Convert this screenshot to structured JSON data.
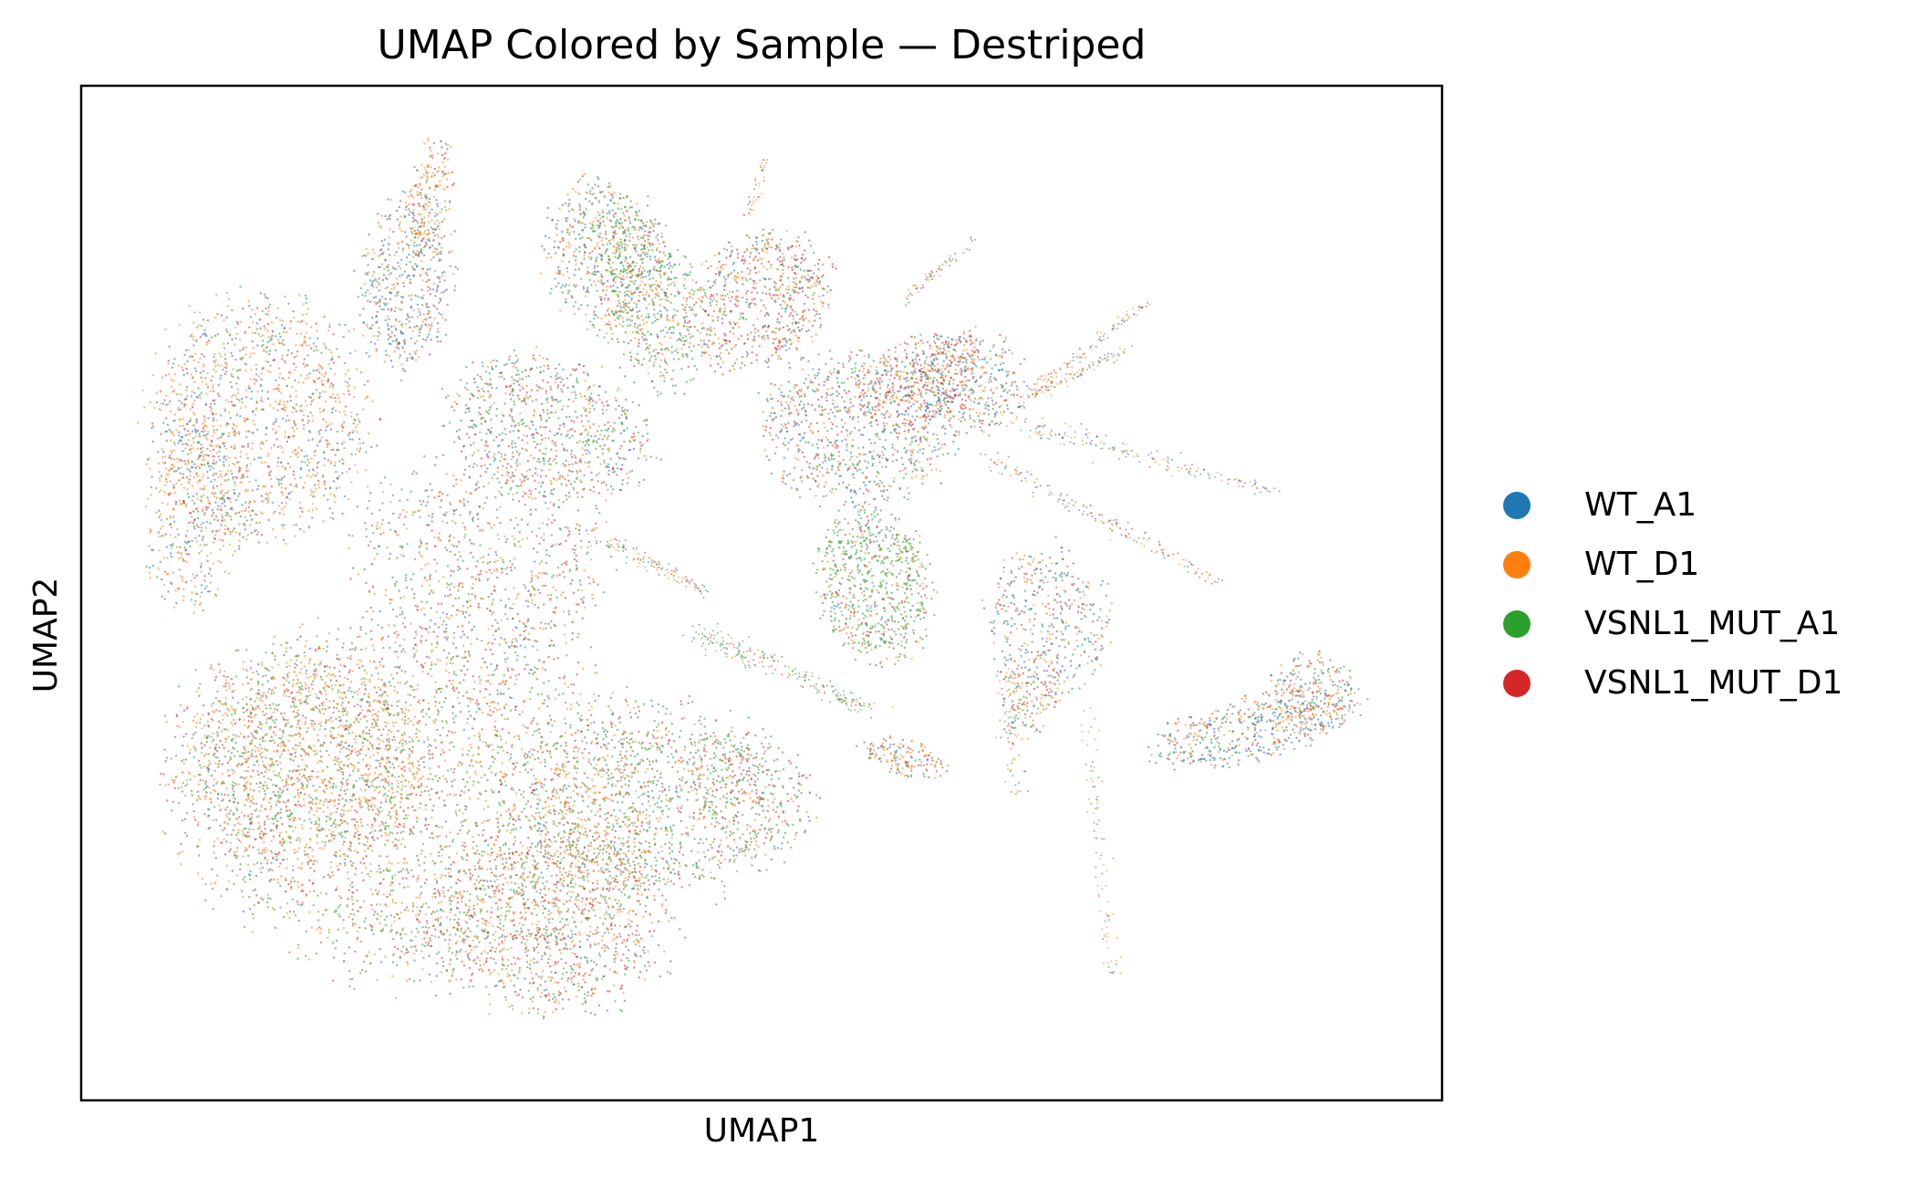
{
  "chart_data": {
    "type": "scatter",
    "title": "UMAP Colored by Sample — Destriped",
    "xlabel": "UMAP1",
    "ylabel": "UMAP2",
    "xticks": [],
    "yticks": [],
    "grid": false,
    "legend_position": "right",
    "series": [
      {
        "name": "WT_A1",
        "color": "#1f77b4"
      },
      {
        "name": "WT_D1",
        "color": "#ff7f0e"
      },
      {
        "name": "VSNL1_MUT_A1",
        "color": "#2ca02c"
      },
      {
        "name": "VSNL1_MUT_D1",
        "color": "#d62728"
      }
    ]
  }
}
